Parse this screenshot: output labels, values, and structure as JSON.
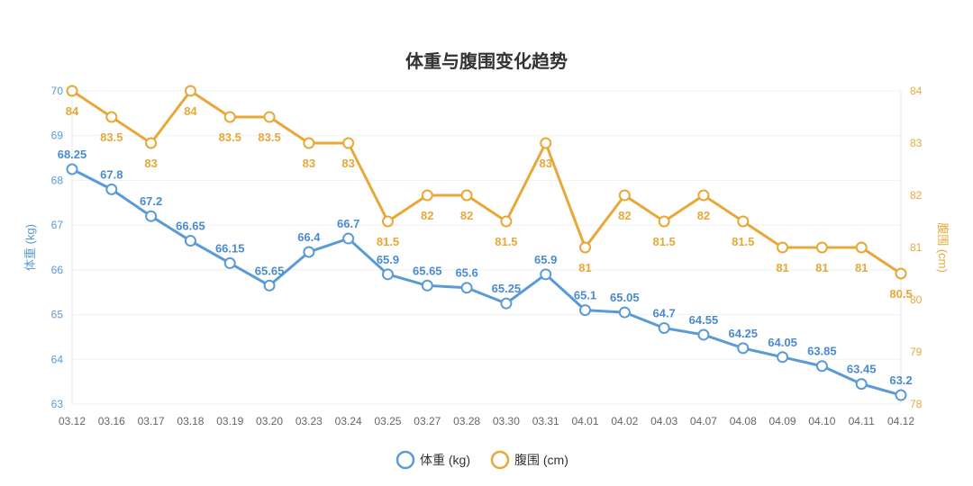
{
  "chart_data": {
    "type": "line",
    "title": "体重与腹围变化趋势",
    "categories": [
      "03.12",
      "03.16",
      "03.17",
      "03.18",
      "03.19",
      "03.20",
      "03.23",
      "03.24",
      "03.25",
      "03.27",
      "03.28",
      "03.30",
      "03.31",
      "04.01",
      "04.02",
      "04.03",
      "04.07",
      "04.08",
      "04.09",
      "04.10",
      "04.11",
      "04.12"
    ],
    "series": [
      {
        "name": "体重 (kg)",
        "axis": "left",
        "color": "#5b9bd5",
        "values": [
          68.25,
          67.8,
          67.2,
          66.65,
          66.15,
          65.65,
          66.4,
          66.7,
          65.9,
          65.65,
          65.6,
          65.25,
          65.9,
          65.1,
          65.05,
          64.7,
          64.55,
          64.25,
          64.05,
          63.85,
          63.45,
          63.2
        ]
      },
      {
        "name": "腹围 (cm)",
        "axis": "right",
        "color": "#e8a838",
        "values": [
          84,
          83.5,
          83,
          84,
          83.5,
          83.5,
          83,
          83,
          81.5,
          82,
          82,
          81.5,
          83,
          81,
          82,
          81.5,
          82,
          81.5,
          81,
          81,
          81,
          80.5
        ]
      }
    ],
    "left_axis": {
      "label": "体重 (kg)",
      "ylim": [
        63,
        70
      ],
      "ticks": [
        "63",
        "64",
        "65",
        "66",
        "67",
        "68",
        "69",
        "70"
      ]
    },
    "right_axis": {
      "label": "腹围 (cm)",
      "ylim": [
        78,
        84
      ],
      "ticks": [
        "78",
        "79",
        "80",
        "81",
        "82",
        "83",
        "84"
      ]
    },
    "legend_position": "bottom",
    "grid": true
  }
}
